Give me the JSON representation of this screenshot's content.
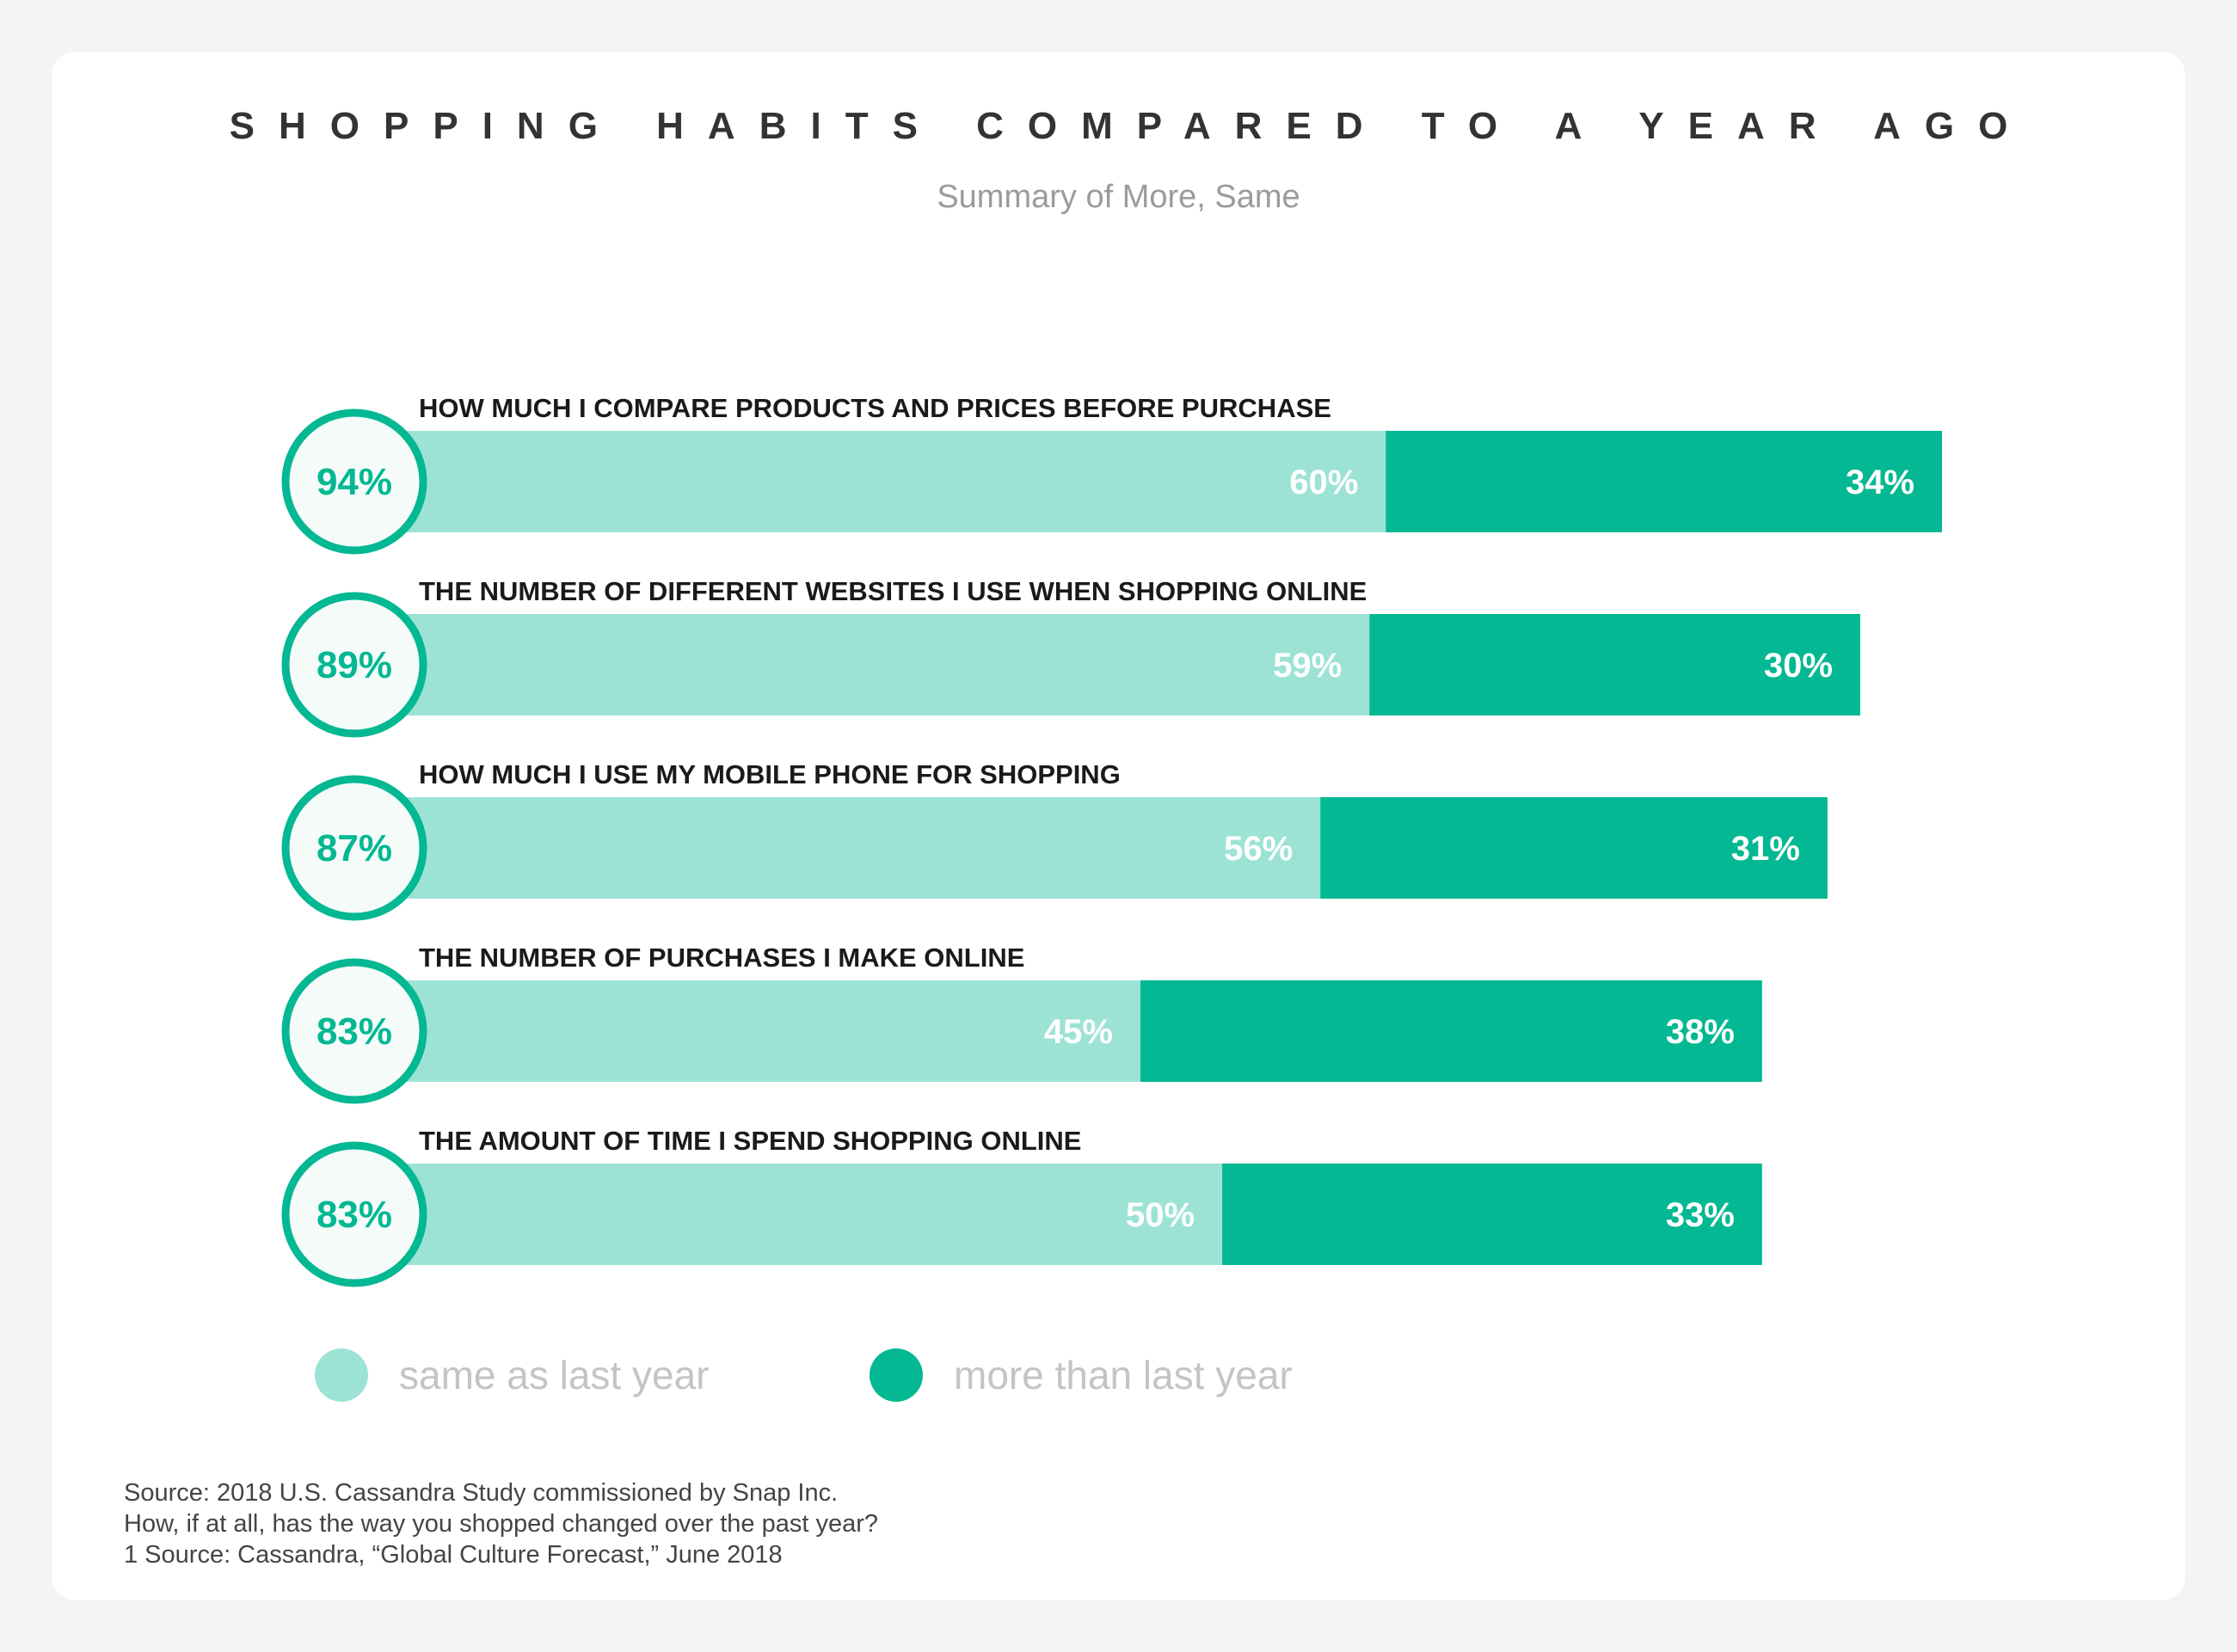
{
  "header": {
    "title": "SHOPPING HABITS COMPARED TO A YEAR AGO",
    "subtitle": "Summary of More, Same"
  },
  "legend": [
    {
      "label": "same as last year",
      "color": "#9de3d5"
    },
    {
      "label": "more than last year",
      "color": "#03b892"
    }
  ],
  "source": [
    "Source: 2018 U.S. Cassandra Study commissioned by Snap Inc.",
    "How, if at all, has the way you shopped changed over the past year?",
    "1 Source: Cassandra, “Global Culture Forecast,” June 2018"
  ],
  "chart_data": {
    "type": "bar",
    "orientation": "horizontal",
    "stacked": true,
    "categories": [
      "HOW MUCH I COMPARE PRODUCTS AND PRICES BEFORE PURCHASE",
      "THE NUMBER OF DIFFERENT WEBSITES I USE WHEN SHOPPING ONLINE",
      "HOW MUCH I USE MY MOBILE PHONE FOR SHOPPING",
      "THE NUMBER OF PURCHASES I MAKE ONLINE",
      "THE AMOUNT OF TIME I SPEND SHOPPING ONLINE"
    ],
    "totals": [
      "94%",
      "89%",
      "87%",
      "83%",
      "83%"
    ],
    "series": [
      {
        "name": "same as last year",
        "values": [
          60,
          59,
          56,
          45,
          50
        ],
        "labels": [
          "60%",
          "59%",
          "56%",
          "45%",
          "50%"
        ],
        "color": "#9de3d5"
      },
      {
        "name": "more than last year",
        "values": [
          34,
          30,
          31,
          38,
          33
        ],
        "labels": [
          "34%",
          "30%",
          "31%",
          "38%",
          "33%"
        ],
        "color": "#03b892"
      }
    ],
    "title": "SHOPPING HABITS COMPARED TO A YEAR AGO",
    "subtitle": "Summary of More, Same",
    "xlim": [
      0,
      94
    ],
    "grid": false,
    "legend_position": "bottom-left"
  }
}
